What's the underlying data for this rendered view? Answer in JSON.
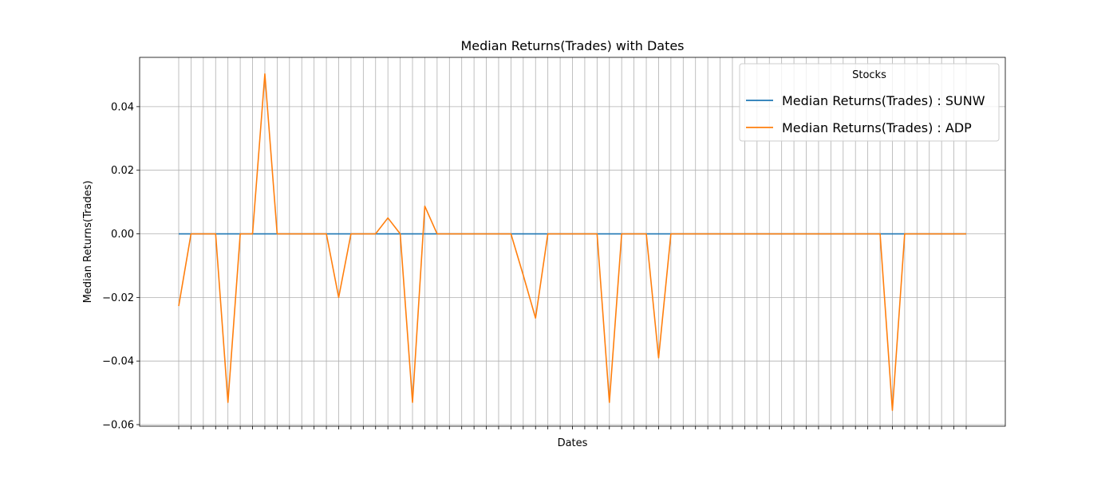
{
  "chart_data": {
    "type": "line",
    "title": "Median Returns(Trades) with Dates",
    "xlabel": "Dates",
    "ylabel": "Median Returns(Trades)",
    "x_count": 65,
    "ylim": [
      -0.0605,
      0.0555
    ],
    "yticks": [
      0.04,
      0.02,
      0.0,
      -0.02,
      -0.04,
      -0.06
    ],
    "ytick_labels": [
      "0.04",
      "0.02",
      "0.00",
      "−0.02",
      "−0.04",
      "−0.06"
    ],
    "grid": true,
    "legend": {
      "title": "Stocks",
      "placement": "top-right"
    },
    "series": [
      {
        "name": "Median Returns(Trades) : SUNW",
        "color": "#1f77b4",
        "values": [
          0,
          0,
          0,
          0,
          0,
          0,
          0,
          0,
          0,
          0,
          0,
          0,
          0,
          0,
          0,
          0,
          0,
          0,
          0,
          0,
          0,
          0,
          0,
          0,
          0,
          0,
          0,
          0,
          0,
          0,
          0,
          0,
          0,
          0,
          0,
          0,
          0,
          0,
          0,
          0,
          0,
          0,
          0,
          0,
          0,
          0,
          0,
          0,
          0,
          0,
          0,
          0,
          0,
          0,
          0,
          0,
          0,
          0,
          0,
          0,
          0,
          0,
          0,
          0,
          0
        ]
      },
      {
        "name": "Median Returns(Trades) : ADP",
        "color": "#ff7f0e",
        "values": [
          -0.0227,
          0,
          0,
          0,
          -0.053,
          0,
          0,
          0.0503,
          0,
          0,
          0,
          0,
          0,
          -0.02,
          0,
          0,
          0,
          0.005,
          0,
          -0.053,
          0.0087,
          0,
          0,
          0,
          0,
          0,
          0,
          0,
          -0.013,
          -0.0265,
          0,
          0,
          0,
          0,
          0,
          -0.053,
          0,
          0,
          0,
          -0.039,
          0,
          0,
          0,
          0,
          0,
          0,
          0,
          0,
          0,
          0,
          0,
          0,
          0,
          0,
          0,
          0,
          0,
          0,
          -0.0555,
          0,
          0,
          0,
          0,
          0,
          0
        ]
      }
    ]
  }
}
